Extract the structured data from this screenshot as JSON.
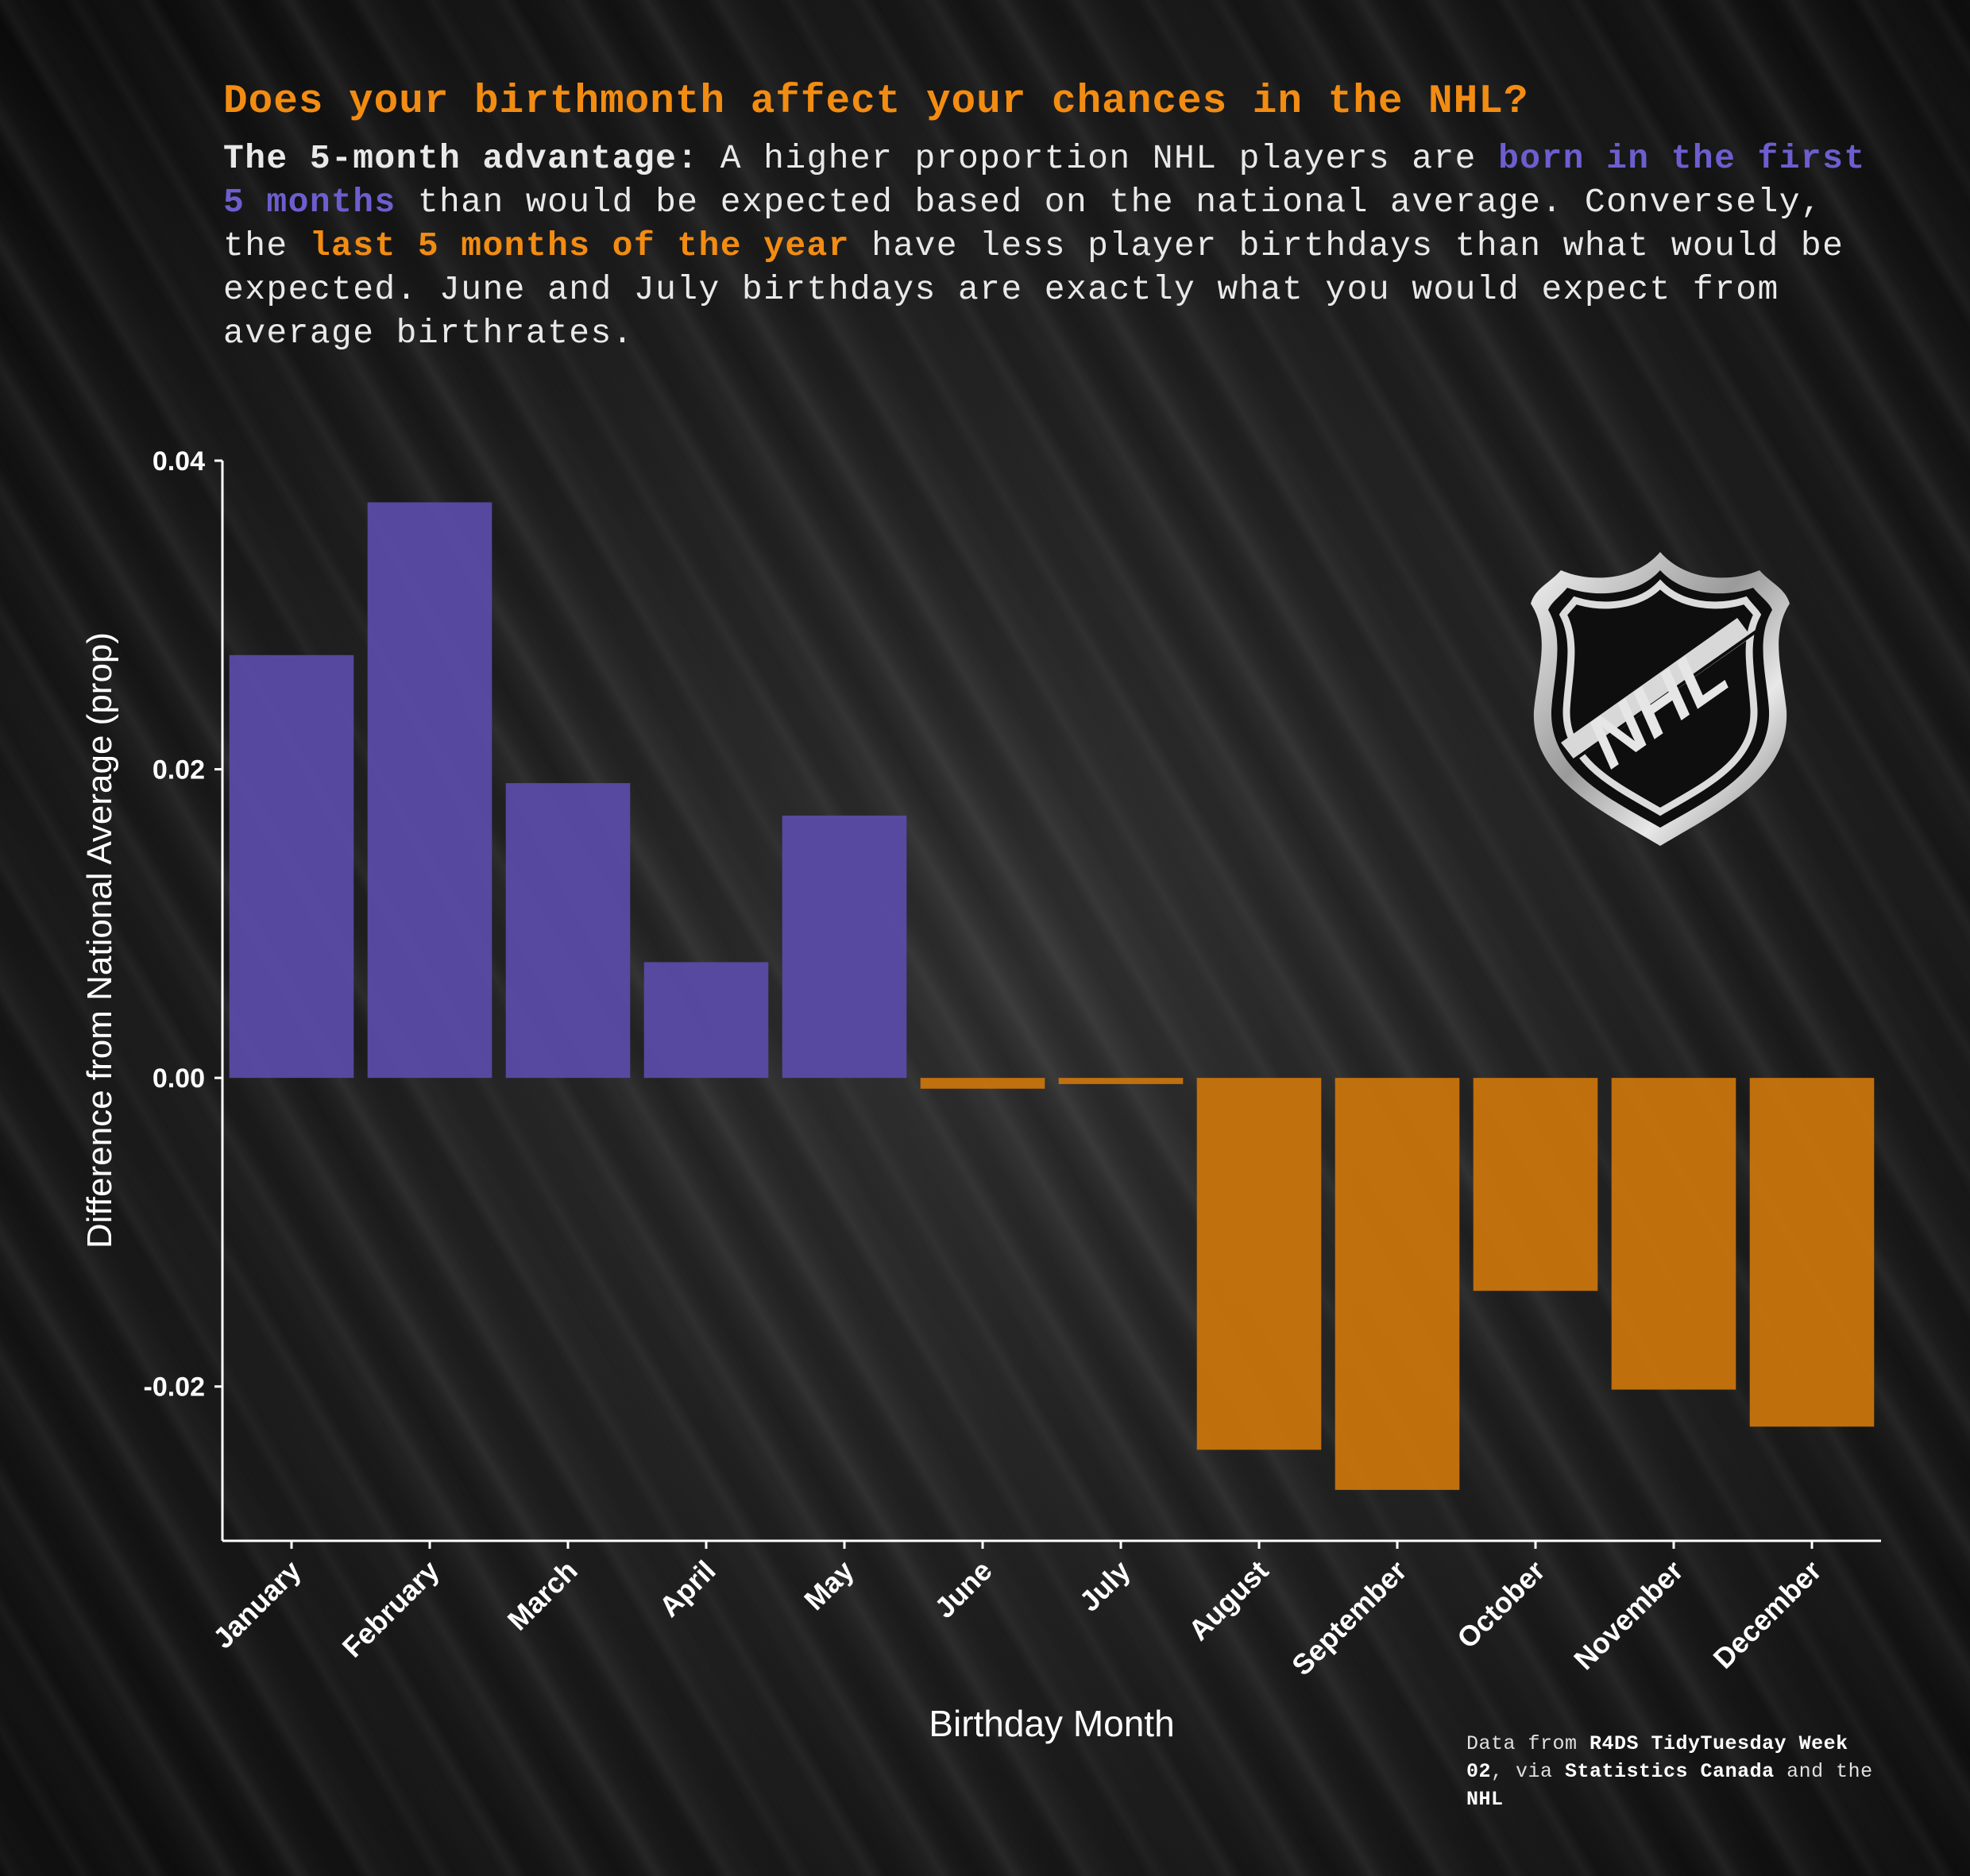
{
  "title": "Does your birthmonth affect your chances in the NHL?",
  "subtitle": {
    "lead": "The 5-month advantage:",
    "text1": " A higher proportion NHL players are ",
    "highlight1": "born in the first 5 months",
    "text2": " than would be expected based on the national average. Conversely, the ",
    "highlight2": "last 5 months of the year",
    "text3": " have less player birthdays than what would be expected. June and July birthdays are exactly what you would expect from average birthrates."
  },
  "caption": {
    "p1": "Data from ",
    "b1": "R4DS TidyTuesday Week 02",
    "p2": ", via ",
    "b2": "Statistics Canada",
    "p3": " and the ",
    "b3": "NHL"
  },
  "logo": {
    "text": "NHL",
    "icon": "nhl-shield-logo"
  },
  "colors": {
    "positive": "#5a4ba6",
    "negative": "#c8740c",
    "axis": "#ffffff",
    "title": "#f28c12"
  },
  "chart_data": {
    "type": "bar",
    "xlabel": "Birthday Month",
    "ylabel": "Difference from National Average (prop)",
    "categories": [
      "January",
      "February",
      "March",
      "April",
      "May",
      "June",
      "July",
      "August",
      "September",
      "October",
      "November",
      "December"
    ],
    "values": [
      0.0274,
      0.0373,
      0.0191,
      0.0075,
      0.017,
      -0.0007,
      -0.0004,
      -0.0241,
      -0.0267,
      -0.0138,
      -0.0202,
      -0.0226
    ],
    "ylim": [
      -0.03,
      0.04
    ],
    "yticks": [
      0.04,
      0.02,
      0.0,
      -0.02
    ],
    "ytick_labels": [
      "0.04",
      "0.02",
      "0.00",
      "-0.02"
    ],
    "grid": false,
    "legend": "none"
  }
}
